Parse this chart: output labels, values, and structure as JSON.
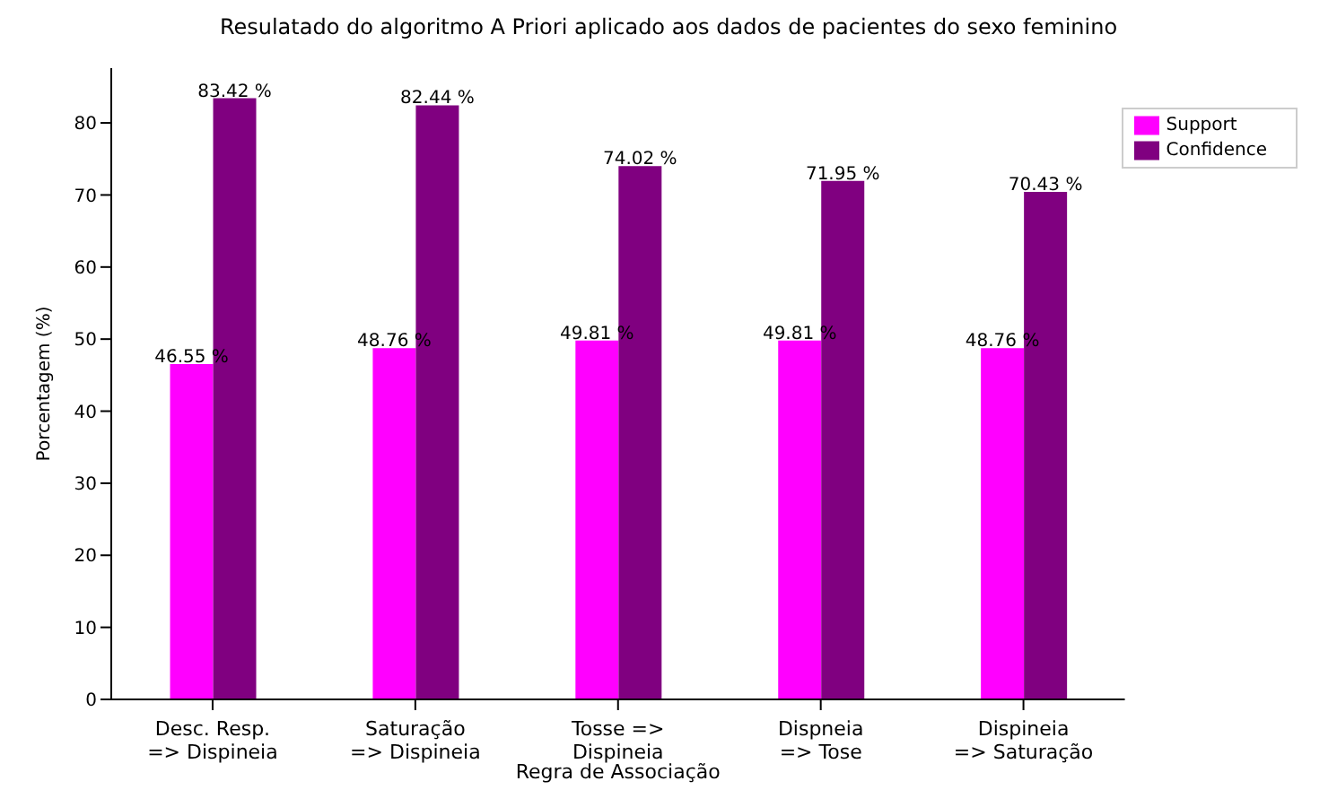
{
  "chart_data": {
    "type": "bar",
    "title": "Resulatado do algoritmo A Priori aplicado aos dados de pacientes do sexo feminino",
    "xlabel": "Regra de Associação",
    "ylabel": "Porcentagem (%)",
    "categories": [
      "Desc. Resp. => Dispineia",
      "Saturação => Dispineia",
      "Tosse => Dispineia",
      "Dispneia => Tose",
      "Dispineia => Saturação"
    ],
    "series": [
      {
        "name": "Support",
        "color": "#ff00ff",
        "values": [
          46.55,
          48.76,
          49.81,
          49.81,
          48.76
        ],
        "value_labels": [
          "46.55 %",
          "48.76 %",
          "49.81 %",
          "49.81 %",
          "48.76 %"
        ]
      },
      {
        "name": "Confidence",
        "color": "#800080",
        "values": [
          83.42,
          82.44,
          74.02,
          71.95,
          70.43
        ],
        "value_labels": [
          "83.42 %",
          "82.44 %",
          "74.02 %",
          "71.95 %",
          "70.43 %"
        ]
      }
    ],
    "ylim": [
      0,
      87.6
    ],
    "yticks": [
      0,
      10,
      20,
      30,
      40,
      50,
      60,
      70,
      80
    ],
    "grid": false,
    "legend": "top right"
  }
}
